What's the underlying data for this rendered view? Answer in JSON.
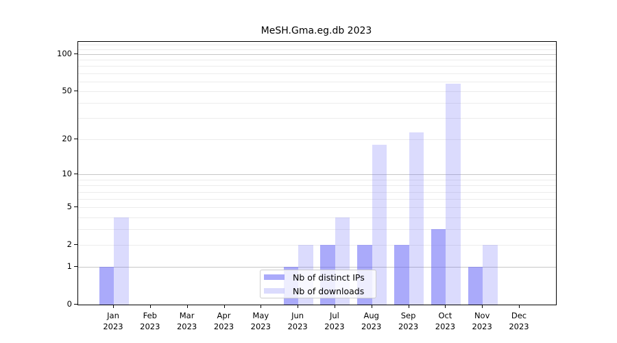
{
  "title": "MeSH.Gma.eg.db 2023",
  "chart_data": {
    "type": "bar",
    "title": "MeSH.Gma.eg.db 2023",
    "categories": [
      "Jan",
      "Feb",
      "Mar",
      "Apr",
      "May",
      "Jun",
      "Jul",
      "Aug",
      "Sep",
      "Oct",
      "Nov",
      "Dec"
    ],
    "year_label": "2023",
    "series": [
      {
        "name": "Nb of distinct IPs",
        "color": "#6464f5",
        "alpha": 0.55,
        "effective_hex": "#aaaaf9",
        "values": [
          1,
          0,
          0,
          0,
          0,
          1,
          2,
          2,
          2,
          3,
          1,
          0
        ]
      },
      {
        "name": "Nb of downloads",
        "color": "#6464f5",
        "alpha": 0.23,
        "effective_hex": "#dcdcfb",
        "values": [
          4,
          0,
          0,
          0,
          0,
          2,
          4,
          18,
          23,
          58,
          2,
          0
        ]
      }
    ],
    "y_scale": "log10(1+y)",
    "y_ticks": [
      0,
      1,
      2,
      5,
      10,
      20,
      50,
      100
    ],
    "y_major_gridlines": [
      1,
      10,
      100
    ],
    "y_minor_gridlines": [
      2,
      3,
      4,
      5,
      6,
      7,
      8,
      9,
      20,
      30,
      40,
      50,
      60,
      70,
      80,
      90,
      110,
      120
    ],
    "ylim": [
      0,
      126
    ],
    "grid": true,
    "legend": {
      "position": "lower center"
    },
    "colors": {
      "background": "#ffffff",
      "axis": "#000000",
      "text": "#000000",
      "major_grid": "#c6c6c6",
      "minor_grid": "#ececec",
      "legend_border": "#cccccc"
    }
  }
}
